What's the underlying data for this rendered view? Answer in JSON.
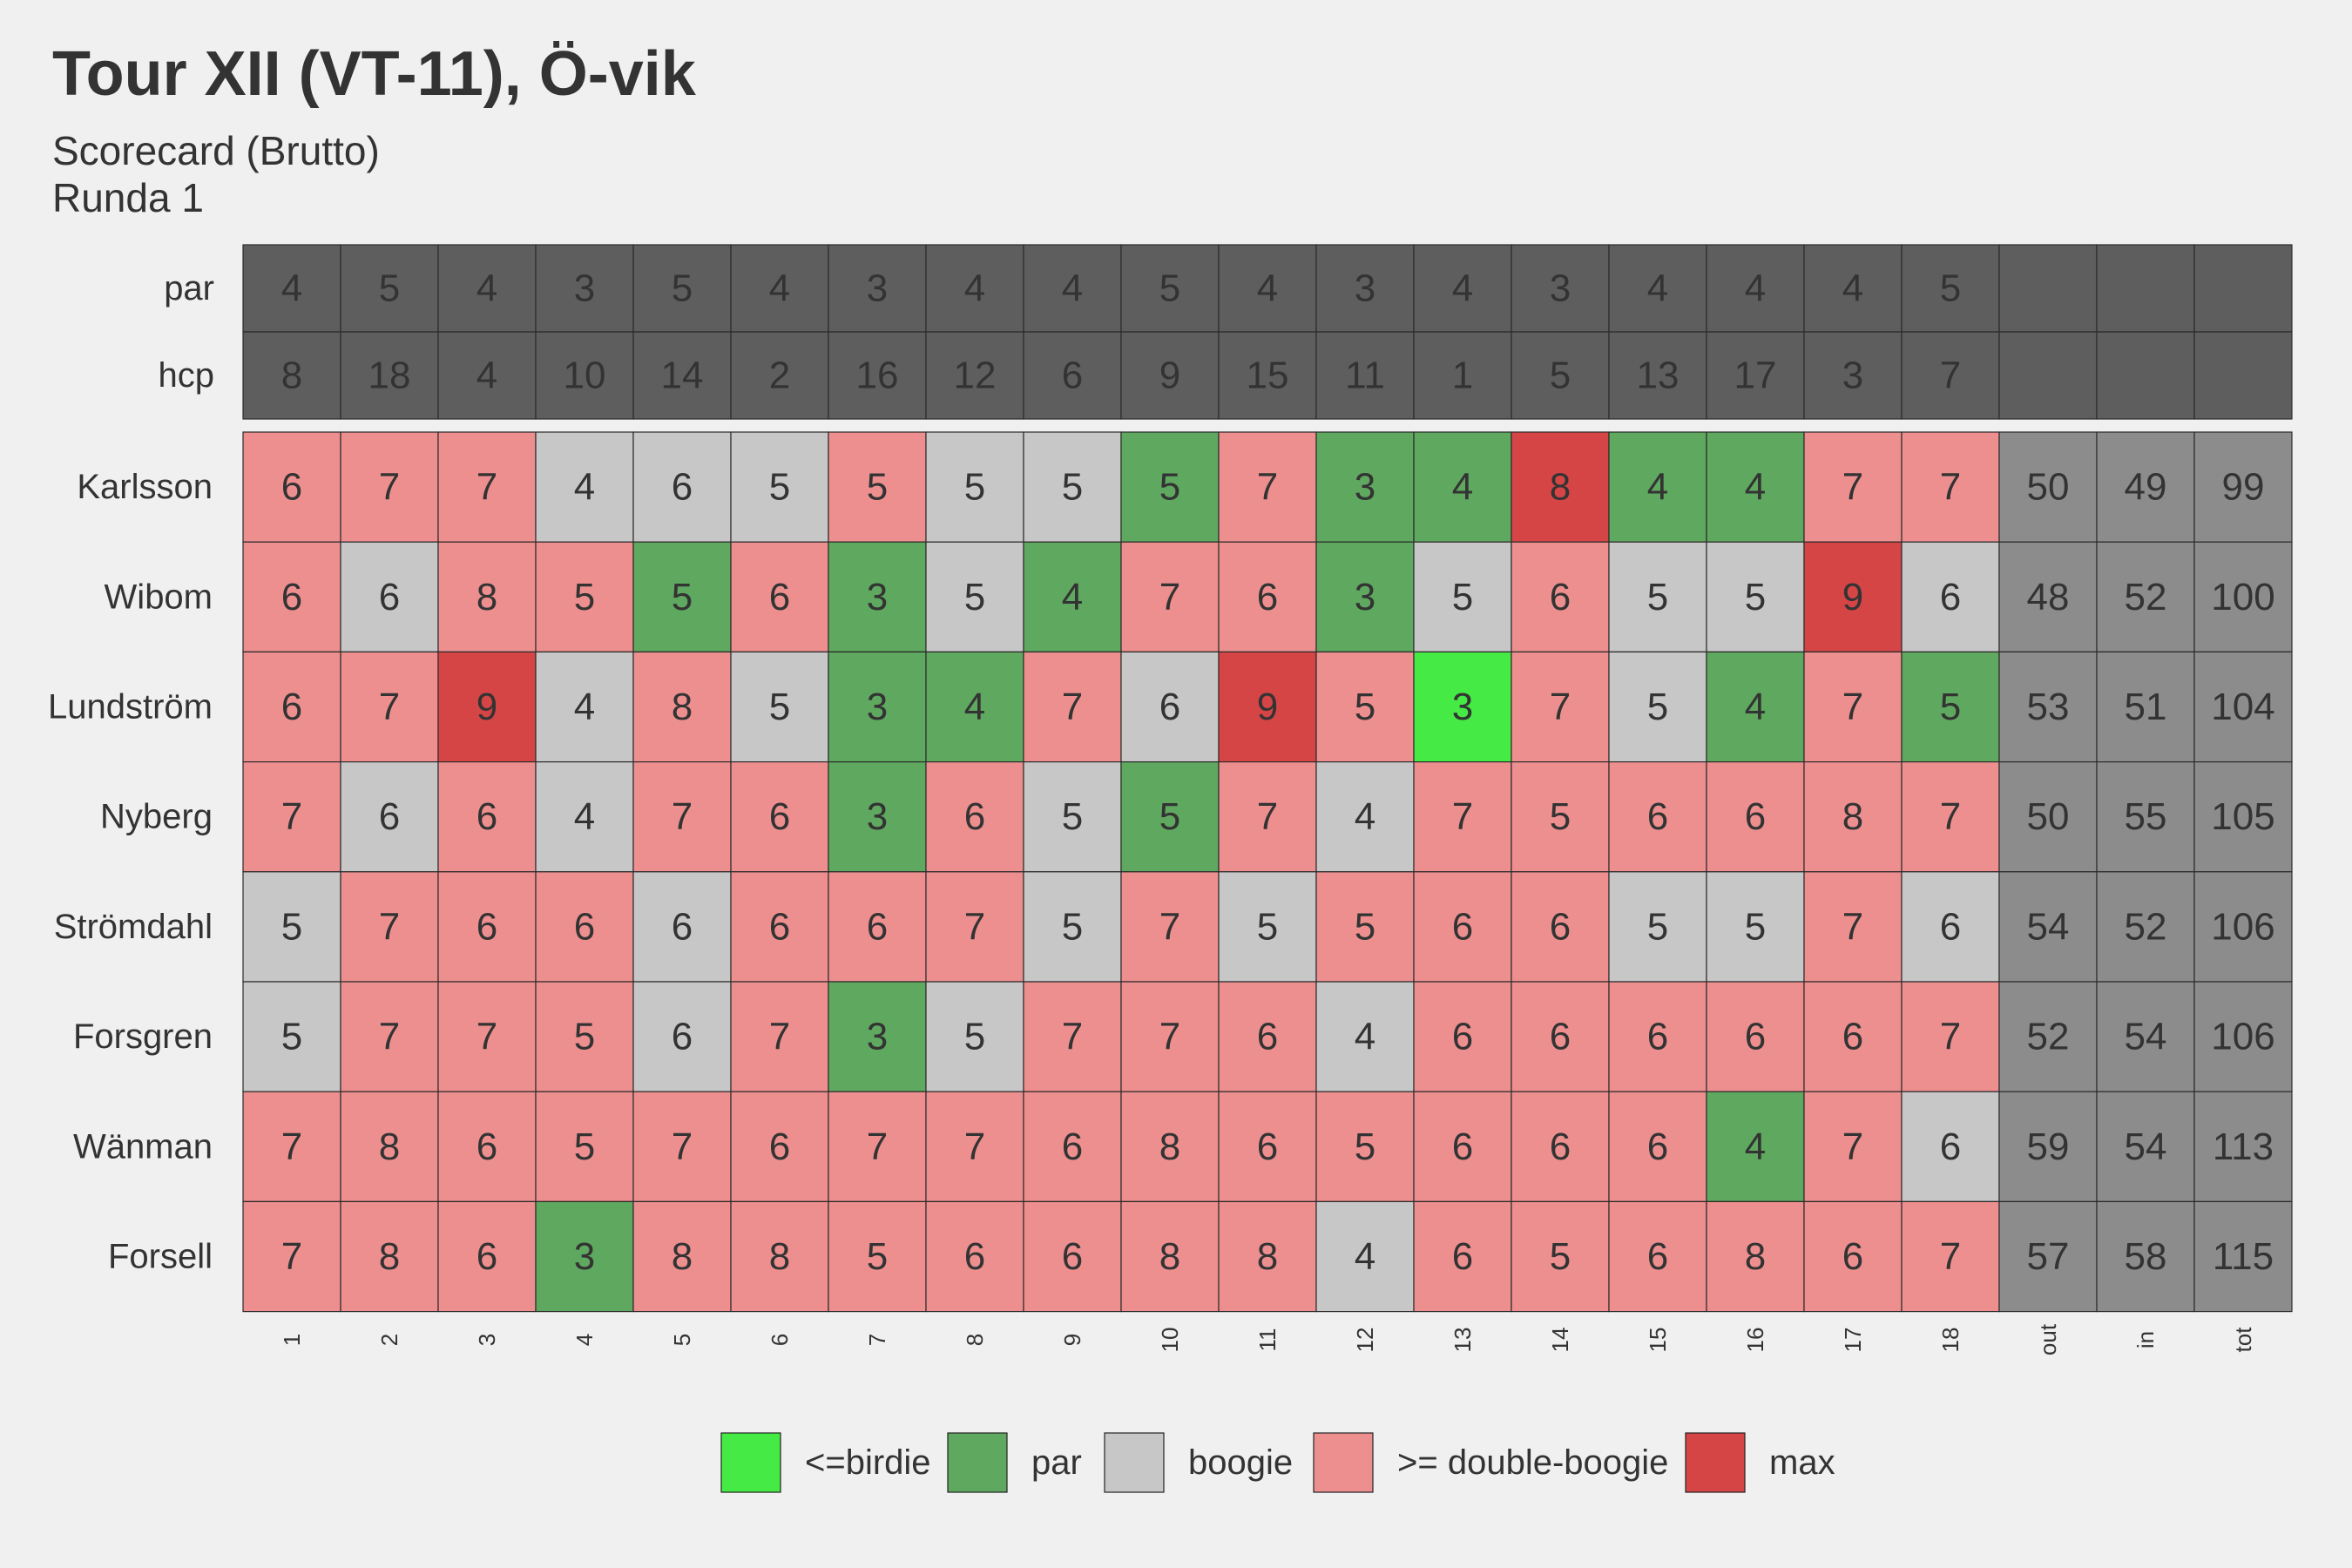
{
  "chart_data": {
    "type": "heatmap",
    "title": "Tour XII (VT-11), Ö-vik",
    "subtitle_lines": [
      "Scorecard (Brutto)",
      "Runda 1"
    ],
    "columns": [
      "1",
      "2",
      "3",
      "4",
      "5",
      "6",
      "7",
      "8",
      "9",
      "10",
      "11",
      "12",
      "13",
      "14",
      "15",
      "16",
      "17",
      "18",
      "out",
      "in",
      "tot"
    ],
    "par_label": "par",
    "hcp_label": "hcp",
    "par": [
      4,
      5,
      4,
      3,
      5,
      4,
      3,
      4,
      4,
      5,
      4,
      3,
      4,
      3,
      4,
      4,
      4,
      5
    ],
    "hcp": [
      8,
      18,
      4,
      10,
      14,
      2,
      16,
      12,
      6,
      9,
      15,
      11,
      1,
      5,
      13,
      17,
      3,
      7
    ],
    "players": [
      {
        "name": "Karlsson",
        "scores": [
          6,
          7,
          7,
          4,
          6,
          5,
          5,
          5,
          5,
          5,
          7,
          3,
          4,
          8,
          4,
          4,
          7,
          7
        ],
        "out": 50,
        "in": 49,
        "tot": 99
      },
      {
        "name": "Wibom",
        "scores": [
          6,
          6,
          8,
          5,
          5,
          6,
          3,
          5,
          4,
          7,
          6,
          3,
          5,
          6,
          5,
          5,
          9,
          6
        ],
        "out": 48,
        "in": 52,
        "tot": 100
      },
      {
        "name": "Lundström",
        "scores": [
          6,
          7,
          9,
          4,
          8,
          5,
          3,
          4,
          7,
          6,
          9,
          5,
          3,
          7,
          5,
          4,
          7,
          5
        ],
        "out": 53,
        "in": 51,
        "tot": 104
      },
      {
        "name": "Nyberg",
        "scores": [
          7,
          6,
          6,
          4,
          7,
          6,
          3,
          6,
          5,
          5,
          7,
          4,
          7,
          5,
          6,
          6,
          8,
          7
        ],
        "out": 50,
        "in": 55,
        "tot": 105
      },
      {
        "name": "Strömdahl",
        "scores": [
          5,
          7,
          6,
          6,
          6,
          6,
          6,
          7,
          5,
          7,
          5,
          5,
          6,
          6,
          5,
          5,
          7,
          6
        ],
        "out": 54,
        "in": 52,
        "tot": 106
      },
      {
        "name": "Forsgren",
        "scores": [
          5,
          7,
          7,
          5,
          6,
          7,
          3,
          5,
          7,
          7,
          6,
          4,
          6,
          6,
          6,
          6,
          6,
          7
        ],
        "out": 52,
        "in": 54,
        "tot": 106
      },
      {
        "name": "Wänman",
        "scores": [
          7,
          8,
          6,
          5,
          7,
          6,
          7,
          7,
          6,
          8,
          6,
          5,
          6,
          6,
          6,
          4,
          7,
          6
        ],
        "out": 59,
        "in": 54,
        "tot": 113
      },
      {
        "name": "Forsell",
        "scores": [
          7,
          8,
          6,
          3,
          8,
          8,
          5,
          6,
          6,
          8,
          8,
          4,
          6,
          5,
          6,
          8,
          6,
          7
        ],
        "out": 57,
        "in": 58,
        "tot": 115
      }
    ],
    "max_cells": [
      [
        0,
        13
      ],
      [
        1,
        16
      ],
      [
        2,
        2
      ],
      [
        2,
        10
      ]
    ],
    "legend": [
      {
        "key": "birdie",
        "label": "<=birdie",
        "color": "#45ea45"
      },
      {
        "key": "par",
        "label": "par",
        "color": "#5fa85f"
      },
      {
        "key": "bogey",
        "label": "boogie",
        "color": "#c7c7c7"
      },
      {
        "key": "double",
        "label": ">= double-boogie",
        "color": "#ee8f8f"
      },
      {
        "key": "max",
        "label": "max",
        "color": "#d64545"
      }
    ],
    "colors": {
      "header_bg": "#5e5e5e",
      "totals_bg": "#8c8c8c",
      "background": "#f0f0f0",
      "text": "#333333"
    }
  }
}
